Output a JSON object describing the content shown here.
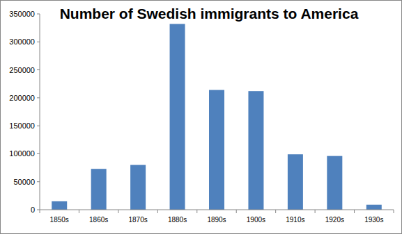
{
  "chart_data": {
    "type": "bar",
    "title": "Number of Swedish immigrants to America",
    "categories": [
      "1850s",
      "1860s",
      "1870s",
      "1880s",
      "1890s",
      "1900s",
      "1910s",
      "1920s",
      "1930s"
    ],
    "values": [
      15000,
      73000,
      80000,
      332000,
      214000,
      212000,
      99000,
      96000,
      9000
    ],
    "color": "#4f81bd",
    "ylim": [
      0,
      350000
    ],
    "yticks": [
      0,
      50000,
      100000,
      150000,
      200000,
      250000,
      300000,
      350000
    ],
    "grid": false
  }
}
